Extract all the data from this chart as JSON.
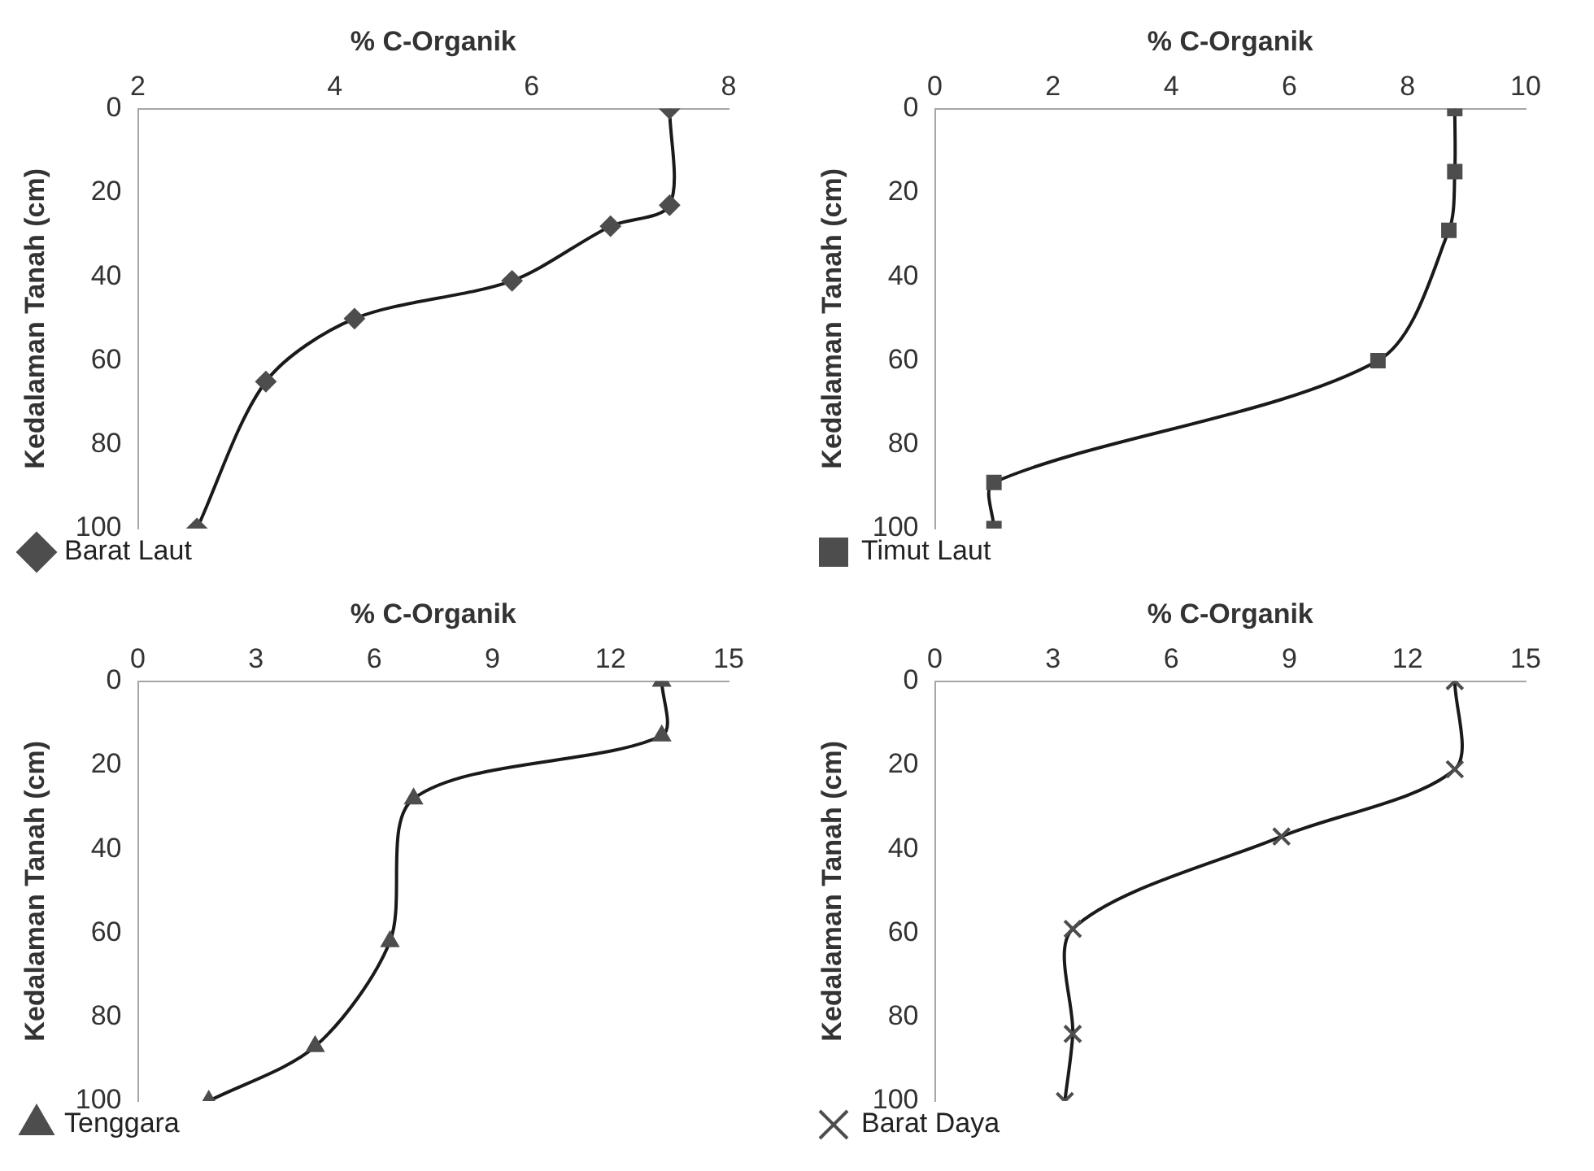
{
  "chart_data": [
    {
      "type": "line",
      "xlabel": "% C-Organik",
      "ylabel": "Kedalaman Tanah (cm)",
      "xlim": [
        2,
        8
      ],
      "xticks": [
        2,
        4,
        6,
        8
      ],
      "ylim": [
        100,
        0
      ],
      "yticks": [
        0,
        20,
        40,
        60,
        80,
        100
      ],
      "legend": "bottom",
      "marker": "diamond",
      "series": [
        {
          "name": "Barat Laut",
          "color": "#4d4d4d",
          "x": [
            7.4,
            7.4,
            6.8,
            5.8,
            4.2,
            3.3,
            2.6
          ],
          "values": [
            0,
            23,
            28,
            41,
            50,
            65,
            100
          ]
        }
      ]
    },
    {
      "type": "line",
      "xlabel": "% C-Organik",
      "ylabel": "Kedalaman Tanah (cm)",
      "xlim": [
        0,
        10
      ],
      "xticks": [
        0,
        2,
        4,
        6,
        8,
        10
      ],
      "ylim": [
        100,
        0
      ],
      "yticks": [
        0,
        20,
        40,
        60,
        80,
        100
      ],
      "legend": "bottom",
      "marker": "square",
      "series": [
        {
          "name": "Timut Laut",
          "color": "#4d4d4d",
          "x": [
            8.8,
            8.8,
            8.7,
            7.5,
            1.0,
            1.0
          ],
          "values": [
            0,
            15,
            29,
            60,
            89,
            100
          ]
        }
      ]
    },
    {
      "type": "line",
      "xlabel": "% C-Organik",
      "ylabel": "Kedalaman Tanah (cm)",
      "xlim": [
        0,
        15
      ],
      "xticks": [
        0,
        3,
        6,
        9,
        12,
        15
      ],
      "ylim": [
        100,
        0
      ],
      "yticks": [
        0,
        20,
        40,
        60,
        80,
        100
      ],
      "legend": "bottom",
      "marker": "triangle",
      "series": [
        {
          "name": "Tenggara",
          "color": "#4d4d4d",
          "x": [
            13.3,
            13.3,
            7.0,
            6.4,
            4.5,
            1.8
          ],
          "values": [
            0,
            13,
            28,
            62,
            87,
            100
          ]
        }
      ]
    },
    {
      "type": "line",
      "xlabel": "% C-Organik",
      "ylabel": "Kedalaman Tanah (cm)",
      "xlim": [
        0,
        15
      ],
      "xticks": [
        0,
        3,
        6,
        9,
        12,
        15
      ],
      "ylim": [
        100,
        0
      ],
      "yticks": [
        0,
        20,
        40,
        60,
        80,
        100
      ],
      "legend": "bottom",
      "marker": "cross",
      "series": [
        {
          "name": "Barat Daya",
          "color": "#4d4d4d",
          "x": [
            13.2,
            13.2,
            8.8,
            3.5,
            3.5,
            3.3
          ],
          "values": [
            0,
            21,
            37,
            59,
            84,
            100
          ]
        }
      ]
    }
  ]
}
